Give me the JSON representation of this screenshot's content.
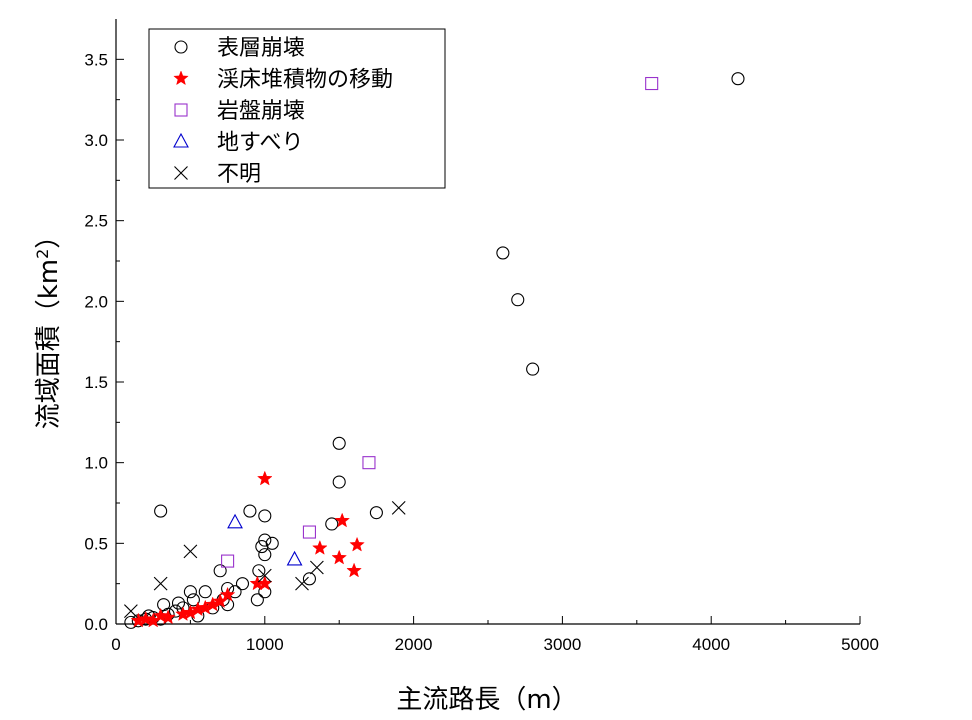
{
  "chart_data": {
    "type": "scatter",
    "title": "",
    "xlabel": "主流路長（m）",
    "ylabel_main": "流域面積（km",
    "ylabel_sup": "2",
    "ylabel_end": "）",
    "xlim": [
      0,
      5000
    ],
    "ylim": [
      0,
      3.75
    ],
    "x_ticks": [
      "0",
      "1000",
      "2000",
      "3000",
      "4000",
      "5000"
    ],
    "y_ticks": [
      "0.0",
      "0.5",
      "1.0",
      "1.5",
      "2.0",
      "2.5",
      "3.0",
      "3.5"
    ],
    "grid": false,
    "legend_position": "top-left",
    "series": [
      {
        "name": "表層崩壊",
        "marker": "circle",
        "color": "#000000",
        "points": [
          [
            100,
            0.01
          ],
          [
            150,
            0.02
          ],
          [
            200,
            0.03
          ],
          [
            220,
            0.05
          ],
          [
            250,
            0.04
          ],
          [
            300,
            0.03
          ],
          [
            300,
            0.7
          ],
          [
            320,
            0.12
          ],
          [
            350,
            0.06
          ],
          [
            400,
            0.08
          ],
          [
            420,
            0.13
          ],
          [
            450,
            0.1
          ],
          [
            500,
            0.2
          ],
          [
            520,
            0.15
          ],
          [
            550,
            0.05
          ],
          [
            600,
            0.2
          ],
          [
            650,
            0.1
          ],
          [
            700,
            0.33
          ],
          [
            720,
            0.15
          ],
          [
            750,
            0.22
          ],
          [
            750,
            0.12
          ],
          [
            800,
            0.2
          ],
          [
            850,
            0.25
          ],
          [
            900,
            0.7
          ],
          [
            950,
            0.15
          ],
          [
            960,
            0.33
          ],
          [
            980,
            0.48
          ],
          [
            1000,
            0.52
          ],
          [
            1000,
            0.43
          ],
          [
            1000,
            0.2
          ],
          [
            1000,
            0.67
          ],
          [
            1050,
            0.5
          ],
          [
            1300,
            0.28
          ],
          [
            1450,
            0.62
          ],
          [
            1500,
            1.12
          ],
          [
            1500,
            0.88
          ],
          [
            1750,
            0.69
          ],
          [
            2600,
            2.3
          ],
          [
            2700,
            2.01
          ],
          [
            2800,
            1.58
          ],
          [
            4180,
            3.38
          ]
        ]
      },
      {
        "name": "渓床堆積物の移動",
        "marker": "star",
        "color": "#ff0000",
        "points": [
          [
            150,
            0.02
          ],
          [
            200,
            0.03
          ],
          [
            250,
            0.02
          ],
          [
            300,
            0.05
          ],
          [
            350,
            0.04
          ],
          [
            450,
            0.06
          ],
          [
            500,
            0.07
          ],
          [
            550,
            0.09
          ],
          [
            600,
            0.1
          ],
          [
            650,
            0.12
          ],
          [
            700,
            0.14
          ],
          [
            750,
            0.18
          ],
          [
            950,
            0.25
          ],
          [
            1000,
            0.9
          ],
          [
            1000,
            0.25
          ],
          [
            1370,
            0.47
          ],
          [
            1500,
            0.41
          ],
          [
            1520,
            0.64
          ],
          [
            1600,
            0.33
          ],
          [
            1620,
            0.49
          ]
        ]
      },
      {
        "name": "岩盤崩壊",
        "marker": "square",
        "color": "#9932cc",
        "points": [
          [
            750,
            0.39
          ],
          [
            1300,
            0.57
          ],
          [
            1700,
            1.0
          ],
          [
            3600,
            3.35
          ]
        ]
      },
      {
        "name": "地すべり",
        "marker": "triangle",
        "color": "#0000cd",
        "points": [
          [
            800,
            0.63
          ],
          [
            1200,
            0.4
          ]
        ]
      },
      {
        "name": "不明",
        "marker": "x",
        "color": "#000000",
        "points": [
          [
            100,
            0.08
          ],
          [
            300,
            0.25
          ],
          [
            500,
            0.45
          ],
          [
            1000,
            0.3
          ],
          [
            1250,
            0.25
          ],
          [
            1350,
            0.35
          ],
          [
            1900,
            0.72
          ]
        ]
      }
    ]
  }
}
